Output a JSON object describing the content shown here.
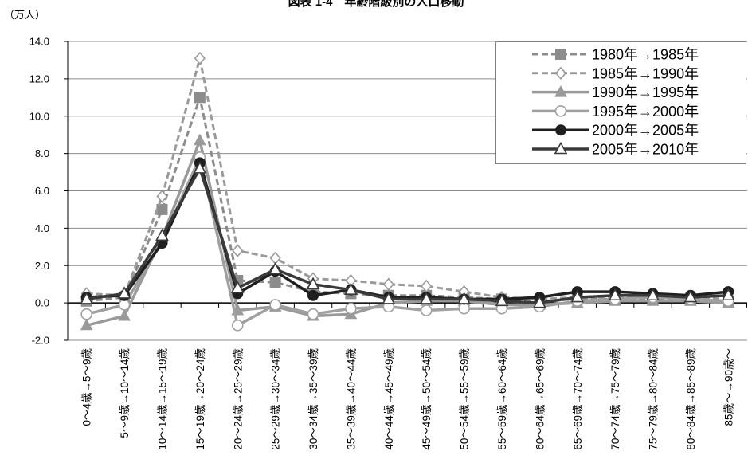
{
  "chart_data": {
    "type": "line",
    "title": "図表 1-4　年齢階級別の人口移動",
    "ylabel": "（万人）",
    "ylim": [
      -2,
      14
    ],
    "yticks": [
      "14.0",
      "12.0",
      "10.0",
      "8.0",
      "6.0",
      "4.0",
      "2.0",
      "0.0",
      "-2.0"
    ],
    "grid": true,
    "legend_position": "top-right",
    "categories": [
      "0～4歳→5～9歳",
      "5～9歳→10～14歳",
      "10～14歳→15～19歳",
      "15～19歳→20～24歳",
      "20～24歳→25～29歳",
      "25～29歳→30～34歳",
      "30～34歳→35～39歳",
      "35～39歳→40～44歳",
      "40～44歳→45～49歳",
      "45～49歳→50～54歳",
      "50～54歳→55～59歳",
      "55～59歳→60～64歳",
      "60～64歳→65～69歳",
      "65～69歳→70～74歳",
      "70～74歳→75～79歳",
      "75～79歳→80～84歳",
      "80～84歳→85～89歳",
      "85歳～→90歳～"
    ],
    "series": [
      {
        "name": "1980年→1985年",
        "line_style": "dashed",
        "marker": "filled-square",
        "color": "#8c8c8c",
        "values": [
          0.1,
          0.3,
          5.0,
          11.0,
          1.2,
          1.1,
          0.6,
          0.5,
          0.4,
          0.4,
          0.3,
          0.2,
          0.1,
          0.2,
          0.2,
          0.2,
          0.2,
          0.1
        ]
      },
      {
        "name": "1985年→1990年",
        "line_style": "dashed",
        "marker": "open-diamond",
        "color": "#9a9a9a",
        "values": [
          0.5,
          0.4,
          5.7,
          13.1,
          2.8,
          2.4,
          1.3,
          1.2,
          1.0,
          0.9,
          0.6,
          0.3,
          0.2,
          0.3,
          0.3,
          0.4,
          0.3,
          0.2
        ]
      },
      {
        "name": "1990年→1995年",
        "line_style": "solid",
        "marker": "filled-triangle",
        "color": "#9a9a9a",
        "values": [
          -1.2,
          -0.7,
          3.5,
          8.7,
          -0.4,
          -0.2,
          -0.7,
          -0.6,
          0.0,
          0.1,
          0.1,
          -0.1,
          -0.1,
          0.0,
          0.1,
          0.1,
          0.1,
          0.0
        ]
      },
      {
        "name": "1995年→2000年",
        "line_style": "solid",
        "marker": "open-circle",
        "color": "#a0a0a0",
        "values": [
          -0.6,
          -0.1,
          3.3,
          7.8,
          -1.2,
          -0.1,
          -0.6,
          -0.3,
          -0.2,
          -0.4,
          -0.3,
          -0.3,
          -0.2,
          0.1,
          0.2,
          0.3,
          0.2,
          0.1
        ]
      },
      {
        "name": "2000年→2005年",
        "line_style": "solid",
        "marker": "filled-circle",
        "color": "#1f1f1f",
        "values": [
          0.3,
          0.4,
          3.2,
          7.5,
          0.5,
          1.7,
          0.4,
          0.7,
          0.3,
          0.3,
          0.2,
          0.2,
          0.3,
          0.6,
          0.6,
          0.5,
          0.4,
          0.6
        ]
      },
      {
        "name": "2005年→2010年",
        "line_style": "solid",
        "marker": "open-triangle",
        "color": "#3a3a3a",
        "values": [
          0.2,
          0.5,
          3.6,
          7.2,
          0.8,
          1.8,
          1.0,
          0.7,
          0.2,
          0.2,
          0.2,
          0.1,
          0.0,
          0.3,
          0.4,
          0.4,
          0.3,
          0.4
        ]
      }
    ]
  }
}
